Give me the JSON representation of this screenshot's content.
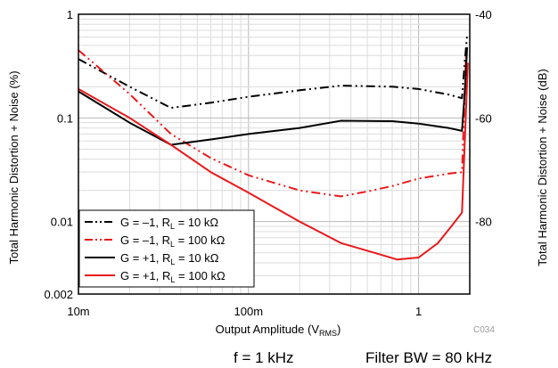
{
  "chart_data": {
    "type": "line",
    "x_scale": "log",
    "y_scale": "log",
    "xlim": [
      0.01,
      2.0
    ],
    "ylim": [
      0.002,
      1
    ],
    "y2lim": [
      -94,
      -40
    ],
    "grid": true,
    "legend_position": "bottom-left",
    "xlabel_main": "Output Amplitude (V",
    "xlabel_sub": "RMS",
    "xlabel_close": ")",
    "ylabel": "Total Harmonic Distortion + Noise (%)",
    "y2label": "Total Harmonic Distortion + Noise (dB)",
    "x_ticks": [
      {
        "value": 0.01,
        "label": "10m"
      },
      {
        "value": 0.1,
        "label": "100m"
      },
      {
        "value": 1,
        "label": "1"
      }
    ],
    "y_ticks": [
      {
        "value": 1,
        "label": "1"
      },
      {
        "value": 0.1,
        "label": "0.1"
      },
      {
        "value": 0.01,
        "label": "0.01"
      },
      {
        "value": 0.002,
        "label": "0.002"
      }
    ],
    "y2_ticks": [
      {
        "value": -40,
        "label": "-40"
      },
      {
        "value": -60,
        "label": "-60"
      },
      {
        "value": -80,
        "label": "-80"
      }
    ],
    "series": [
      {
        "name_main": "G = –1, R",
        "name_sub": "L",
        "name_tail": " = 10 kΩ",
        "color": "#000000",
        "dash": "dashdotdot",
        "x": [
          0.01,
          0.02,
          0.035,
          0.06,
          0.1,
          0.2,
          0.35,
          0.7,
          1.0,
          1.5,
          1.8,
          1.87,
          1.93
        ],
        "y": [
          0.37,
          0.2,
          0.125,
          0.14,
          0.16,
          0.185,
          0.205,
          0.2,
          0.19,
          0.168,
          0.155,
          0.35,
          0.62
        ]
      },
      {
        "name_main": "G = –1, R",
        "name_sub": "L",
        "name_tail": " = 100 kΩ",
        "color": "#e8191c",
        "dash": "dashdotdot",
        "x": [
          0.01,
          0.02,
          0.035,
          0.06,
          0.1,
          0.2,
          0.35,
          0.5,
          0.7,
          1.0,
          1.5,
          1.8,
          1.9
        ],
        "y": [
          0.45,
          0.17,
          0.07,
          0.041,
          0.028,
          0.02,
          0.0175,
          0.0195,
          0.022,
          0.026,
          0.029,
          0.03,
          0.4
        ]
      },
      {
        "name_main": "G = +1, R",
        "name_sub": "L",
        "name_tail": " = 10 kΩ",
        "color": "#000000",
        "dash": "solid",
        "x": [
          0.01,
          0.02,
          0.035,
          0.06,
          0.1,
          0.2,
          0.35,
          0.7,
          1.0,
          1.5,
          1.8,
          1.88,
          1.93
        ],
        "y": [
          0.18,
          0.09,
          0.055,
          0.062,
          0.07,
          0.08,
          0.094,
          0.093,
          0.088,
          0.08,
          0.075,
          0.2,
          0.48
        ]
      },
      {
        "name_main": "G = +1, R",
        "name_sub": "L",
        "name_tail": " = 100 kΩ",
        "color": "#e8191c",
        "dash": "solid",
        "x": [
          0.01,
          0.02,
          0.035,
          0.06,
          0.1,
          0.2,
          0.35,
          0.55,
          0.75,
          1.0,
          1.3,
          1.6,
          1.8,
          1.95
        ],
        "y": [
          0.19,
          0.1,
          0.055,
          0.03,
          0.019,
          0.01,
          0.0062,
          0.005,
          0.0043,
          0.0045,
          0.0062,
          0.0095,
          0.0122,
          0.34
        ]
      }
    ],
    "annotation_code": "C034",
    "footer_left": "f = 1 kHz",
    "footer_right": "Filter BW = 80 kHz"
  }
}
